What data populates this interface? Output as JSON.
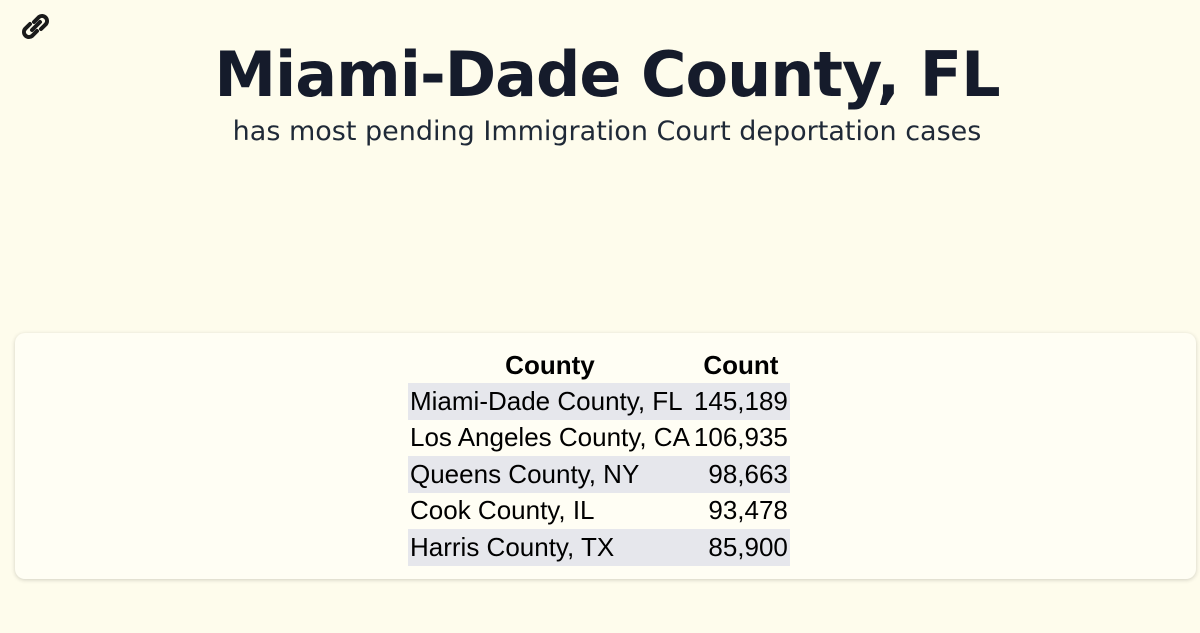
{
  "header": {
    "title": "Miami-Dade County, FL",
    "subtitle": "has most pending Immigration Court deportation cases"
  },
  "table": {
    "columns": [
      "County",
      "Count"
    ],
    "rows": [
      [
        "Miami-Dade County, FL",
        "145,189"
      ],
      [
        "Los Angeles County, CA",
        "106,935"
      ],
      [
        "Queens County, NY",
        "98,663"
      ],
      [
        "Cook County, IL",
        "93,478"
      ],
      [
        "Harris County, TX",
        "85,900"
      ]
    ]
  }
}
